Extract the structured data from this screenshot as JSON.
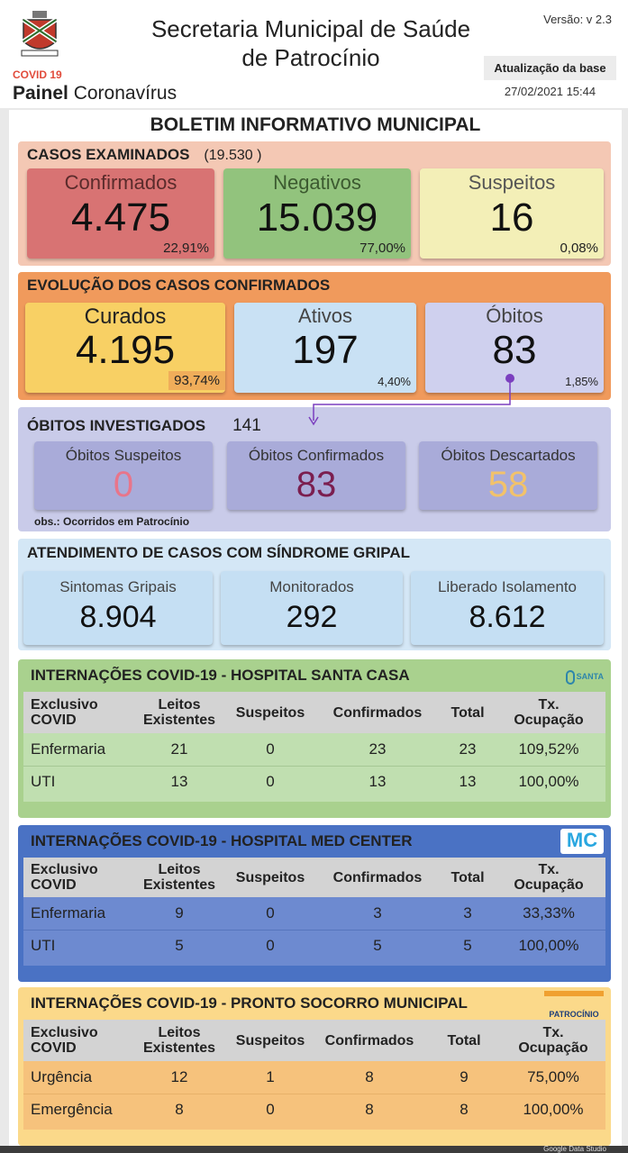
{
  "header": {
    "title_line1": "Secretaria Municipal de Saúde",
    "title_line2": "de Patrocínio",
    "version": "Versão: v 2.3",
    "update_label": "Atualização da base",
    "update_date": "27/02/2021 15:44",
    "covid_label": "COVID 19",
    "painel_bold": "Painel",
    "painel_rest": " Coronavírus"
  },
  "boletim": "BOLETIM INFORMATIVO MUNICIPAL",
  "casos": {
    "title": "CASOS EXAMINADOS",
    "total": "(19.530 )",
    "cards": [
      {
        "label": "Confirmados",
        "value": "4.475",
        "pct": "22,91%"
      },
      {
        "label": "Negativos",
        "value": "15.039",
        "pct": "77,00%"
      },
      {
        "label": "Suspeitos",
        "value": "16",
        "pct": "0,08%"
      }
    ]
  },
  "evolucao": {
    "title": "EVOLUÇÃO DOS CASOS CONFIRMADOS",
    "cards": [
      {
        "label": "Curados",
        "value": "4.195",
        "pct": "93,74%"
      },
      {
        "label": "Ativos",
        "value": "197",
        "pct": "4,40%"
      },
      {
        "label": "Óbitos",
        "value": "83",
        "pct": "1,85%"
      }
    ]
  },
  "obitos": {
    "title": "ÓBITOS INVESTIGADOS",
    "total": "141",
    "cards": [
      {
        "label": "Óbitos Suspeitos",
        "value": "0"
      },
      {
        "label": "Óbitos Confirmados",
        "value": "83"
      },
      {
        "label": "Óbitos Descartados",
        "value": "58"
      }
    ],
    "obs": "obs.: Ocorridos em Patrocínio"
  },
  "gripal": {
    "title": "ATENDIMENTO DE CASOS COM SÍNDROME GRIPAL",
    "cards": [
      {
        "label": "Sintomas Gripais",
        "value": "8.904"
      },
      {
        "label": "Monitorados",
        "value": "292"
      },
      {
        "label": "Liberado Isolamento",
        "value": "8.612"
      }
    ]
  },
  "columns": {
    "c1a": "Exclusivo",
    "c1b": "COVID",
    "c2a": "Leitos",
    "c2b": "Existentes",
    "c3": "Suspeitos",
    "c4": "Confirmados",
    "c5": "Total",
    "c6a": "Tx.",
    "c6b": "Ocupação"
  },
  "santa": {
    "title": "INTERNAÇÕES COVID-19 - HOSPITAL SANTA CASA",
    "logo": "SANTA CASA",
    "rows": [
      [
        "Enfermaria",
        "21",
        "0",
        "23",
        "23",
        "109,52%"
      ],
      [
        "UTI",
        "13",
        "0",
        "13",
        "13",
        "100,00%"
      ]
    ]
  },
  "med": {
    "title": "INTERNAÇÕES COVID-19 - HOSPITAL MED CENTER",
    "logo": "MC",
    "rows": [
      [
        "Enfermaria",
        "9",
        "0",
        "3",
        "3",
        "33,33%"
      ],
      [
        "UTI",
        "5",
        "0",
        "5",
        "5",
        "100,00%"
      ]
    ]
  },
  "pronto": {
    "title": "INTERNAÇÕES COVID-19 - PRONTO SOCORRO MUNICIPAL",
    "logo": "PATROCÍNIO",
    "rows": [
      [
        "Urgência",
        "12",
        "1",
        "8",
        "9",
        "75,00%"
      ],
      [
        "Emergência",
        "8",
        "0",
        "8",
        "8",
        "100,00%"
      ]
    ]
  },
  "footer": "Google Data Studio"
}
